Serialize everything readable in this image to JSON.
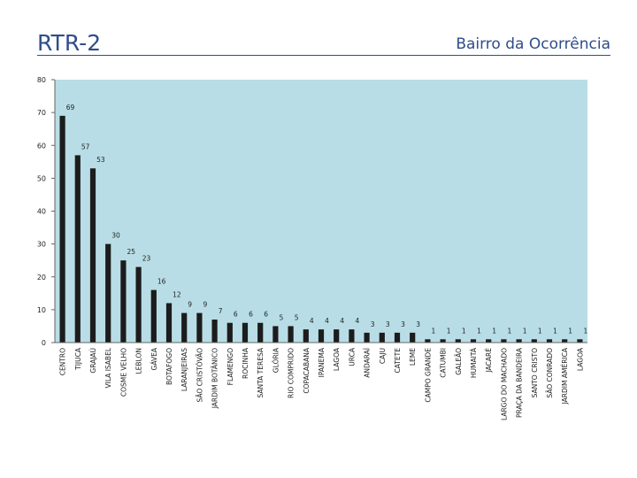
{
  "header": {
    "title": "RTR-2",
    "subtitle": "Bairro da Ocorrência"
  },
  "colors": {
    "plot_bg": "#b8dde6",
    "bar": "#1c1c1c",
    "accent": "#2f4d8a"
  },
  "chart_data": {
    "type": "bar",
    "title": "RTR-2",
    "subtitle": "Bairro da Ocorrência",
    "xlabel": "",
    "ylabel": "",
    "ylim": [
      0,
      80
    ],
    "yticks": [
      0,
      10,
      20,
      30,
      40,
      50,
      60,
      70,
      80
    ],
    "grid": false,
    "categories": [
      "CENTRO",
      "TIJUCA",
      "GRAJAÚ",
      "VILA ISABEL",
      "COSME VELHO",
      "LEBLON",
      "GÁVEA",
      "BOTAFOGO",
      "LARANJEIRAS",
      "SÃO CRISTÓVÃO",
      "JARDIM BOTÂNICO",
      "FLAMENGO",
      "ROCINHA",
      "SANTA TERESA",
      "GLÓRIA",
      "RIO COMPRIDO",
      "COPACABANA",
      "IPANEMA",
      "LAGOA",
      "URCA",
      "ANDARAÍ",
      "CAJU",
      "CATETE",
      "LEME",
      "CAMPO GRANDE",
      "CATUMBI",
      "GALEÃO",
      "HUMAITÁ",
      "JACARÉ",
      "LARGO DO MACHADO",
      "PRAÇA DA BANDEIRA",
      "SANTO CRISTO",
      "SÃO CONRADO",
      "JARDIM AMÉRICA",
      "LAGOA"
    ],
    "values": [
      69,
      57,
      53,
      30,
      25,
      23,
      16,
      12,
      9,
      9,
      7,
      6,
      6,
      6,
      5,
      5,
      4,
      4,
      4,
      4,
      3,
      3,
      3,
      3,
      1,
      1,
      1,
      1,
      1,
      1,
      1,
      1,
      1,
      1,
      1
    ]
  }
}
